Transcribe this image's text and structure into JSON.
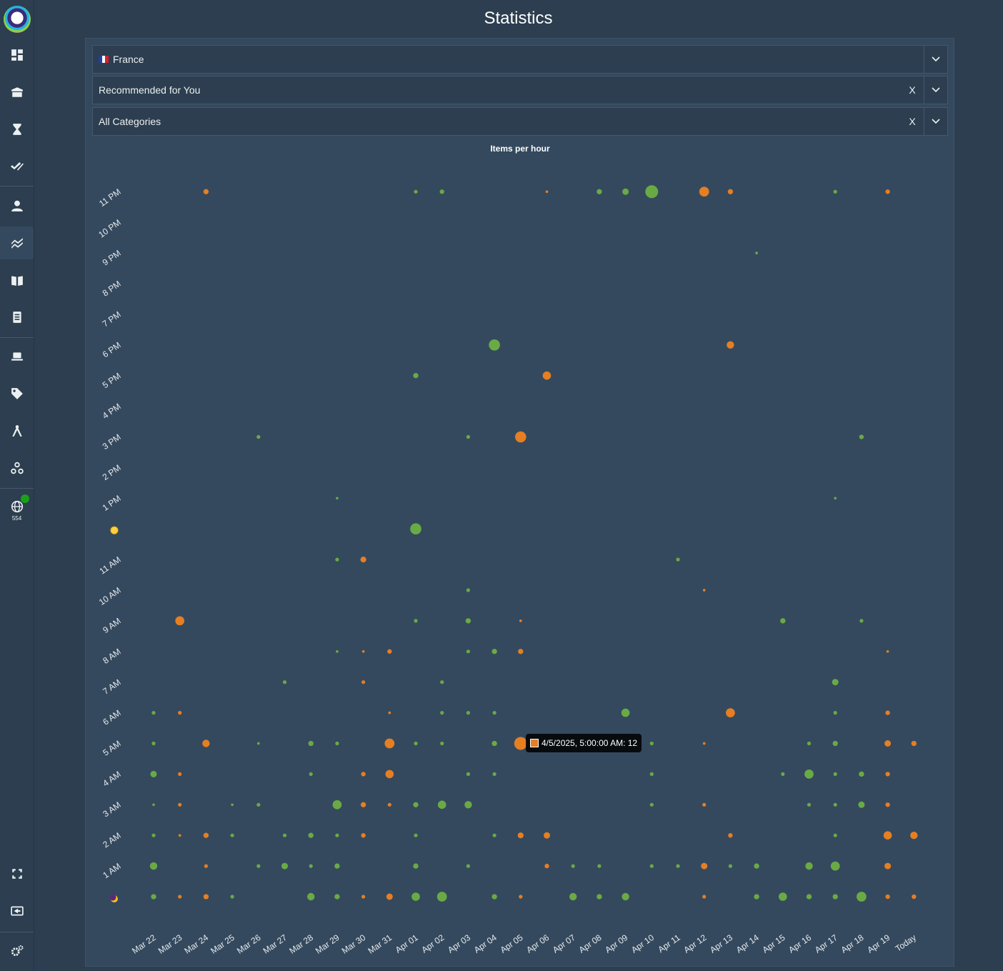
{
  "page": {
    "title": "Statistics"
  },
  "sidebar": {
    "icons": [
      "dashboard-icon",
      "box-icon",
      "hourglass-icon",
      "double-check-icon",
      "user-icon",
      "chart-icon",
      "book-icon",
      "document-icon",
      "laptop-icon",
      "tag-icon",
      "compass-icon",
      "webhook-icon",
      "globe-icon"
    ],
    "globe_count": "554",
    "bottom_icons": [
      "fullscreen-icon",
      "logout-icon",
      "settings-icon"
    ],
    "status_color": "#1aa01a"
  },
  "filters": {
    "country": "France",
    "feed": "Recommended for You",
    "category": "All Categories",
    "clear_symbol": "X"
  },
  "chart_data": {
    "type": "scatter",
    "title": "Items per hour",
    "x_categories": [
      "Mar 22",
      "Mar 23",
      "Mar 24",
      "Mar 25",
      "Mar 26",
      "Mar 27",
      "Mar 28",
      "Mar 29",
      "Mar 30",
      "Mar 31",
      "Apr 01",
      "Apr 02",
      "Apr 03",
      "Apr 04",
      "Apr 05",
      "Apr 06",
      "Apr 07",
      "Apr 08",
      "Apr 09",
      "Apr 10",
      "Apr 11",
      "Apr 12",
      "Apr 13",
      "Apr 14",
      "Apr 15",
      "Apr 16",
      "Apr 17",
      "Apr 18",
      "Apr 19",
      "Today"
    ],
    "y_categories": [
      "",
      "1 AM",
      "2 AM",
      "3 AM",
      "4 AM",
      "5 AM",
      "6 AM",
      "7 AM",
      "8 AM",
      "9 AM",
      "10 AM",
      "11 AM",
      "",
      "1 PM",
      "2 PM",
      "3 PM",
      "4 PM",
      "5 PM",
      "6 PM",
      "7 PM",
      "8 PM",
      "9 PM",
      "10 PM",
      "11 PM"
    ],
    "y_icons": {
      "0": "moon-icon",
      "12": "sun-icon"
    },
    "series": [
      {
        "color": "#6aaa45",
        "points": [
          [
            0,
            0,
            2
          ],
          [
            0,
            1,
            4
          ],
          [
            0,
            4,
            3
          ],
          [
            0,
            5,
            1
          ],
          [
            0,
            6,
            1
          ],
          [
            0,
            2,
            1
          ],
          [
            0,
            3,
            0.5
          ],
          [
            3,
            0,
            1
          ],
          [
            3,
            2,
            1
          ],
          [
            3,
            3,
            0.5
          ],
          [
            4,
            1,
            1
          ],
          [
            4,
            3,
            1
          ],
          [
            4,
            5,
            0.5
          ],
          [
            4,
            15,
            1
          ],
          [
            5,
            1,
            3
          ],
          [
            5,
            2,
            1
          ],
          [
            5,
            7,
            1
          ],
          [
            6,
            0,
            4
          ],
          [
            6,
            1,
            1
          ],
          [
            6,
            2,
            2
          ],
          [
            6,
            4,
            1
          ],
          [
            6,
            5,
            2
          ],
          [
            7,
            0,
            2
          ],
          [
            7,
            1,
            2
          ],
          [
            7,
            2,
            1
          ],
          [
            7,
            3,
            6
          ],
          [
            7,
            5,
            1
          ],
          [
            7,
            8,
            0.5
          ],
          [
            7,
            11,
            1
          ],
          [
            7,
            13,
            0.5
          ],
          [
            10,
            0,
            5
          ],
          [
            10,
            1,
            2
          ],
          [
            10,
            2,
            1
          ],
          [
            10,
            3,
            2
          ],
          [
            10,
            5,
            1
          ],
          [
            10,
            9,
            1
          ],
          [
            10,
            12,
            9
          ],
          [
            10,
            17,
            2
          ],
          [
            10,
            23,
            1
          ],
          [
            11,
            0,
            7
          ],
          [
            11,
            3,
            5
          ],
          [
            11,
            5,
            1
          ],
          [
            11,
            6,
            1
          ],
          [
            11,
            7,
            1
          ],
          [
            11,
            23,
            1.5
          ],
          [
            12,
            1,
            1
          ],
          [
            12,
            3,
            4
          ],
          [
            12,
            4,
            1
          ],
          [
            12,
            6,
            1
          ],
          [
            12,
            8,
            1
          ],
          [
            12,
            9,
            2
          ],
          [
            12,
            10,
            1
          ],
          [
            12,
            15,
            1
          ],
          [
            13,
            0,
            2
          ],
          [
            13,
            2,
            1
          ],
          [
            13,
            4,
            1
          ],
          [
            13,
            5,
            2
          ],
          [
            13,
            6,
            1
          ],
          [
            13,
            8,
            2
          ],
          [
            13,
            18,
            9
          ],
          [
            16,
            0,
            4
          ],
          [
            16,
            1,
            1
          ],
          [
            17,
            0,
            2
          ],
          [
            17,
            1,
            1
          ],
          [
            17,
            23,
            2
          ],
          [
            18,
            0,
            4
          ],
          [
            18,
            6,
            5
          ],
          [
            18,
            23,
            3
          ],
          [
            19,
            1,
            1
          ],
          [
            19,
            3,
            1
          ],
          [
            19,
            4,
            1
          ],
          [
            19,
            5,
            1
          ],
          [
            19,
            23,
            12
          ],
          [
            20,
            1,
            1
          ],
          [
            20,
            11,
            1
          ],
          [
            22,
            1,
            1
          ],
          [
            23,
            0,
            2
          ],
          [
            23,
            1,
            2
          ],
          [
            23,
            21,
            0.5
          ],
          [
            24,
            0,
            5
          ],
          [
            24,
            4,
            1
          ],
          [
            24,
            9,
            2
          ],
          [
            25,
            0,
            2
          ],
          [
            25,
            1,
            4
          ],
          [
            25,
            3,
            1
          ],
          [
            25,
            4,
            6
          ],
          [
            25,
            5,
            1
          ],
          [
            26,
            0,
            2
          ],
          [
            26,
            1,
            6
          ],
          [
            26,
            2,
            1
          ],
          [
            26,
            3,
            1
          ],
          [
            26,
            4,
            1
          ],
          [
            26,
            5,
            2
          ],
          [
            26,
            6,
            1
          ],
          [
            26,
            7,
            3
          ],
          [
            26,
            13,
            0.5
          ],
          [
            26,
            23,
            1
          ],
          [
            27,
            0,
            7
          ],
          [
            27,
            3,
            3
          ],
          [
            27,
            4,
            2
          ],
          [
            27,
            9,
            1
          ],
          [
            27,
            15,
            1.5
          ]
        ]
      },
      {
        "color": "#e67e22",
        "points": [
          [
            1,
            0,
            1
          ],
          [
            1,
            2,
            0.5
          ],
          [
            1,
            3,
            1
          ],
          [
            1,
            4,
            1
          ],
          [
            1,
            6,
            1
          ],
          [
            1,
            9,
            6
          ],
          [
            2,
            0,
            2
          ],
          [
            2,
            1,
            1
          ],
          [
            2,
            2,
            2
          ],
          [
            2,
            5,
            4
          ],
          [
            2,
            23,
            2
          ],
          [
            8,
            0,
            1
          ],
          [
            8,
            2,
            1.5
          ],
          [
            8,
            3,
            2
          ],
          [
            8,
            4,
            1.5
          ],
          [
            8,
            7,
            1
          ],
          [
            8,
            8,
            0.5
          ],
          [
            8,
            11,
            2.5
          ],
          [
            9,
            0,
            3
          ],
          [
            9,
            3,
            1
          ],
          [
            9,
            4,
            5
          ],
          [
            9,
            5,
            7
          ],
          [
            9,
            6,
            0.5
          ],
          [
            9,
            8,
            1.5
          ],
          [
            14,
            0,
            1
          ],
          [
            14,
            2,
            2.5
          ],
          [
            14,
            5,
            12
          ],
          [
            14,
            8,
            2
          ],
          [
            14,
            9,
            0.5
          ],
          [
            14,
            15,
            9
          ],
          [
            15,
            1,
            1.5
          ],
          [
            15,
            2,
            3
          ],
          [
            15,
            17,
            5
          ],
          [
            15,
            23,
            0.5
          ],
          [
            21,
            0,
            1
          ],
          [
            21,
            1,
            3
          ],
          [
            21,
            3,
            1
          ],
          [
            21,
            5,
            0.5
          ],
          [
            21,
            10,
            0.5
          ],
          [
            21,
            23,
            7
          ],
          [
            22,
            2,
            1.5
          ],
          [
            22,
            6,
            6
          ],
          [
            22,
            18,
            4
          ],
          [
            22,
            23,
            2
          ],
          [
            28,
            0,
            1.5
          ],
          [
            28,
            1,
            3
          ],
          [
            28,
            2,
            5
          ],
          [
            28,
            3,
            1.5
          ],
          [
            28,
            4,
            1.5
          ],
          [
            28,
            5,
            3
          ],
          [
            28,
            6,
            1.5
          ],
          [
            28,
            8,
            0.5
          ],
          [
            28,
            23,
            1.5
          ],
          [
            29,
            0,
            1.5
          ],
          [
            29,
            2,
            4
          ],
          [
            29,
            5,
            2
          ]
        ]
      }
    ],
    "tooltip": {
      "text": "4/5/2025, 5:00:00 AM: 12",
      "color": "#e67e22"
    }
  }
}
